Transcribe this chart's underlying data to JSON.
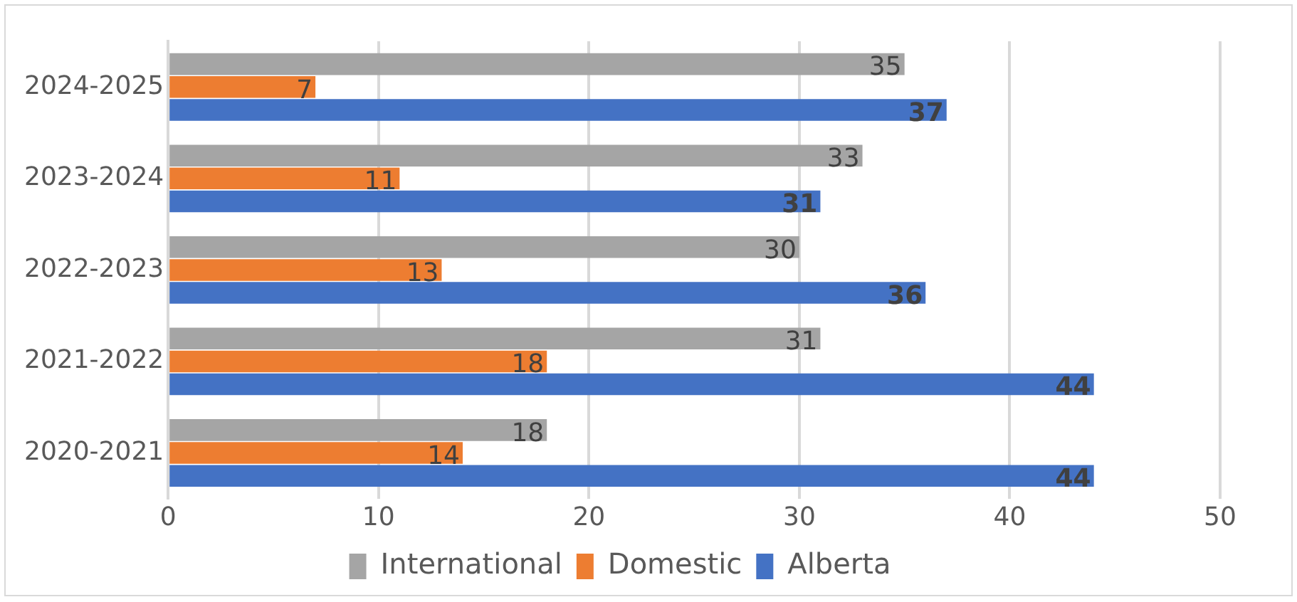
{
  "chart_data": {
    "type": "bar",
    "orientation": "horizontal",
    "categories": [
      "2024-2025",
      "2023-2024",
      "2022-2023",
      "2021-2022",
      "2020-2021"
    ],
    "series": [
      {
        "name": "International",
        "color": "#a5a5a5",
        "values": [
          35,
          33,
          30,
          31,
          18
        ]
      },
      {
        "name": "Domestic",
        "color": "#ed7d31",
        "values": [
          7,
          11,
          13,
          18,
          14
        ]
      },
      {
        "name": "Alberta",
        "color": "#4472c4",
        "values": [
          37,
          31,
          36,
          44,
          44
        ]
      }
    ],
    "xlim": [
      0,
      50
    ],
    "xticks": [
      0,
      10,
      20,
      30,
      40,
      50
    ],
    "grid": "x",
    "legend": "bottom",
    "data_labels": true
  }
}
